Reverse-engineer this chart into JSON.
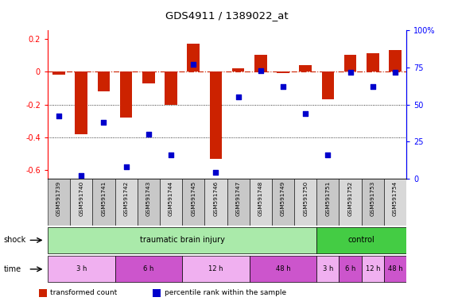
{
  "title": "GDS4911 / 1389022_at",
  "samples": [
    "GSM591739",
    "GSM591740",
    "GSM591741",
    "GSM591742",
    "GSM591743",
    "GSM591744",
    "GSM591745",
    "GSM591746",
    "GSM591747",
    "GSM591748",
    "GSM591749",
    "GSM591750",
    "GSM591751",
    "GSM591752",
    "GSM591753",
    "GSM591754"
  ],
  "red_bars": [
    -0.02,
    -0.38,
    -0.12,
    -0.28,
    -0.07,
    -0.2,
    0.17,
    -0.53,
    0.02,
    0.1,
    -0.01,
    0.04,
    -0.17,
    0.1,
    0.11,
    0.13
  ],
  "blue_pct": [
    42,
    2,
    38,
    8,
    30,
    16,
    77,
    4,
    55,
    73,
    62,
    44,
    16,
    72,
    62,
    72
  ],
  "ylim_left": [
    -0.65,
    0.25
  ],
  "ylim_right": [
    0,
    100
  ],
  "yticks_left": [
    0.2,
    0.0,
    -0.2,
    -0.4,
    -0.6
  ],
  "yticks_right": [
    100,
    75,
    50,
    25,
    0
  ],
  "bar_color": "#cc2200",
  "dot_color": "#0000cc",
  "hline_color": "#cc2200",
  "bg_color": "#ffffff",
  "sample_bg_even": "#c8c8c8",
  "sample_bg_odd": "#d8d8d8",
  "tbi_color": "#aaeaaa",
  "control_color": "#44cc44",
  "time_light": "#f0b0f0",
  "time_dark": "#cc55cc",
  "legend_red": "transformed count",
  "legend_blue": "percentile rank within the sample",
  "shock_groups": [
    {
      "label": "traumatic brain injury",
      "start": 0,
      "end": 12
    },
    {
      "label": "control",
      "start": 12,
      "end": 16
    }
  ],
  "time_groups": [
    {
      "label": "3 h",
      "start": 0,
      "end": 3,
      "dark": false
    },
    {
      "label": "6 h",
      "start": 3,
      "end": 6,
      "dark": true
    },
    {
      "label": "12 h",
      "start": 6,
      "end": 9,
      "dark": false
    },
    {
      "label": "48 h",
      "start": 9,
      "end": 12,
      "dark": true
    },
    {
      "label": "3 h",
      "start": 12,
      "end": 13,
      "dark": false
    },
    {
      "label": "6 h",
      "start": 13,
      "end": 14,
      "dark": true
    },
    {
      "label": "12 h",
      "start": 14,
      "end": 15,
      "dark": false
    },
    {
      "label": "48 h",
      "start": 15,
      "end": 16,
      "dark": true
    }
  ]
}
